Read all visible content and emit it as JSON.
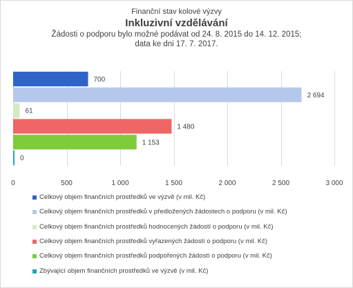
{
  "chart_data": {
    "type": "bar",
    "orientation": "horizontal",
    "supertitle": "Finanční stav kolové výzvy",
    "title": "Inkluzivní vzdělávání",
    "subtitle_lines": [
      "Žádosti o podporu bylo možné  podávat od 24. 8. 2015 do 14. 12. 2015;",
      "data ke dni 17. 7. 2017."
    ],
    "xlim": [
      0,
      3000
    ],
    "x_ticks": [
      "0",
      "500",
      "1 000",
      "1 500",
      "2 000",
      "2 500",
      "3 000"
    ],
    "x_tick_values": [
      0,
      500,
      1000,
      1500,
      2000,
      2500,
      3000
    ],
    "grid": true,
    "legend_position": "bottom",
    "series": [
      {
        "name": "Celkový objem finančních prostředků ve výzvě (v mil. Kč)",
        "value": 700,
        "label": "700",
        "color": "#2e63c8"
      },
      {
        "name": "Celkový objem finančních prostředků v předložených žádostech o podporu (v mil. Kč)",
        "value": 2694,
        "label": "2 694",
        "color": "#b4c8ec"
      },
      {
        "name": "Celkový objem finančních prostředků hodnocených žádostí o podporu (v mil. Kč)",
        "value": 61,
        "label": "61",
        "color": "#d6e8c4"
      },
      {
        "name": "Celkový objem finančních prostředků vyřazených žádostí o podporu (v mil. Kč)",
        "value": 1480,
        "label": "1 480",
        "color": "#ef6666"
      },
      {
        "name": "Celkový objem finančních prostředků podpořených žádostí o podporu (v mil. Kč)",
        "value": 1153,
        "label": "1 153",
        "color": "#7ecb3c"
      },
      {
        "name": "Zbývající objem finančních prostředků ve výzvě (v mil. Kč)",
        "value": 0,
        "label": "0",
        "color": "#1ba7c2"
      }
    ]
  }
}
